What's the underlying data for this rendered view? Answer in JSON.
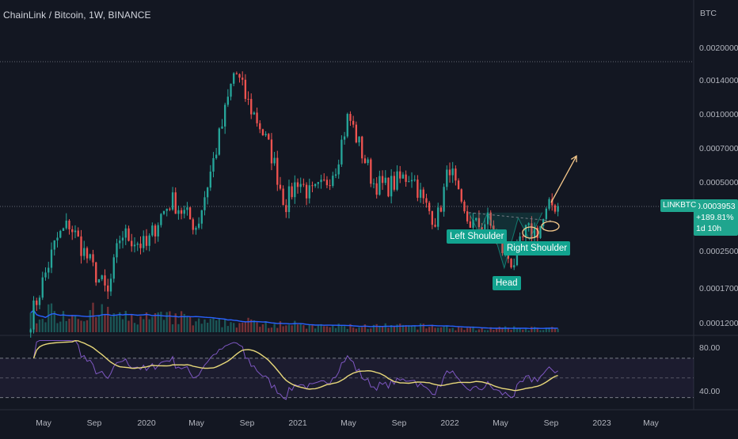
{
  "header": {
    "title": "ChainLink / Bitcoin, 1W, BINANCE"
  },
  "axis": {
    "currency": "BTC",
    "price_ticks": [
      "0.0020000",
      "0.0014000",
      "0.0010000",
      "0.0007000",
      "0.0005000",
      "0.0002500",
      "0.0001700",
      "0.0001200"
    ],
    "rsi_ticks": [
      "80.00",
      "40.00"
    ],
    "time_ticks": [
      "May",
      "Sep",
      "2020",
      "May",
      "Sep",
      "2021",
      "May",
      "Sep",
      "2022",
      "May",
      "Sep",
      "2023",
      "May"
    ]
  },
  "price_label": {
    "symbol": "LINKBTC",
    "price": "0.0003953",
    "change": "+189.81%",
    "countdown": "1d 10h"
  },
  "annotations": {
    "left_shoulder": "Left Shoulder",
    "head": "Head",
    "right_shoulder": "Right Shoulder"
  },
  "colors": {
    "bull": "#26a69a",
    "bear": "#ef5350",
    "volume_ma": "#2962ff",
    "rsi": "#7e57c2",
    "rsi_ma": "#e8d87a",
    "arrow": "#f7c98b",
    "label_bg": "#12a38f"
  },
  "chart_data": {
    "type": "candlestick",
    "symbol": "LINKBTC",
    "interval": "1W",
    "exchange": "BINANCE",
    "scale": "log",
    "ylim": [
      0.000115,
      0.0024
    ],
    "x": {
      "type": "time",
      "start": "2019-04",
      "end": "2023-07"
    },
    "close_path": [
      [
        "2019-04",
        0.000125
      ],
      [
        "2019-06",
        0.00028
      ],
      [
        "2019-07",
        0.00033
      ],
      [
        "2019-09",
        0.0002
      ],
      [
        "2019-10",
        0.00016
      ],
      [
        "2019-11",
        0.0003
      ],
      [
        "2019-12",
        0.00028
      ],
      [
        "2020-01",
        0.00026
      ],
      [
        "2020-02",
        0.00035
      ],
      [
        "2020-03",
        0.00042
      ],
      [
        "2020-05",
        0.00032
      ],
      [
        "2020-07",
        0.0009
      ],
      [
        "2020-08",
        0.0016
      ],
      [
        "2020-09",
        0.00115
      ],
      [
        "2020-10",
        0.0009
      ],
      [
        "2020-11",
        0.00065
      ],
      [
        "2020-12",
        0.0004
      ],
      [
        "2021-01",
        0.00052
      ],
      [
        "2021-02",
        0.00044
      ],
      [
        "2021-03",
        0.00048
      ],
      [
        "2021-04",
        0.0006
      ],
      [
        "2021-05",
        0.001
      ],
      [
        "2021-06",
        0.0007
      ],
      [
        "2021-07",
        0.0005
      ],
      [
        "2021-08",
        0.00048
      ],
      [
        "2021-10",
        0.00055
      ],
      [
        "2021-11",
        0.0004
      ],
      [
        "2021-12",
        0.00034
      ],
      [
        "2022-01",
        0.0006
      ],
      [
        "2022-02",
        0.00036
      ],
      [
        "2022-03",
        0.00032
      ],
      [
        "2022-04",
        0.00034
      ],
      [
        "2022-05",
        0.00026
      ],
      [
        "2022-06",
        0.00022
      ],
      [
        "2022-07",
        0.0003
      ],
      [
        "2022-08",
        0.00031
      ],
      [
        "2022-09",
        0.0004
      ]
    ],
    "last": 0.0003953,
    "change_pct": 189.81,
    "pattern": "inverse head and shoulders",
    "projection": {
      "from": [
        "2022-09",
        0.00041
      ],
      "to": [
        "2022-11",
        0.00066
      ]
    },
    "series": [
      {
        "values_source": "close_path",
        "type": "candles"
      },
      {
        "type": "volume_ma"
      },
      {
        "type": "rsi",
        "range": [
          20,
          90
        ],
        "band": [
          30,
          70
        ],
        "midline": 50
      },
      {
        "type": "rsi_ma"
      }
    ]
  }
}
